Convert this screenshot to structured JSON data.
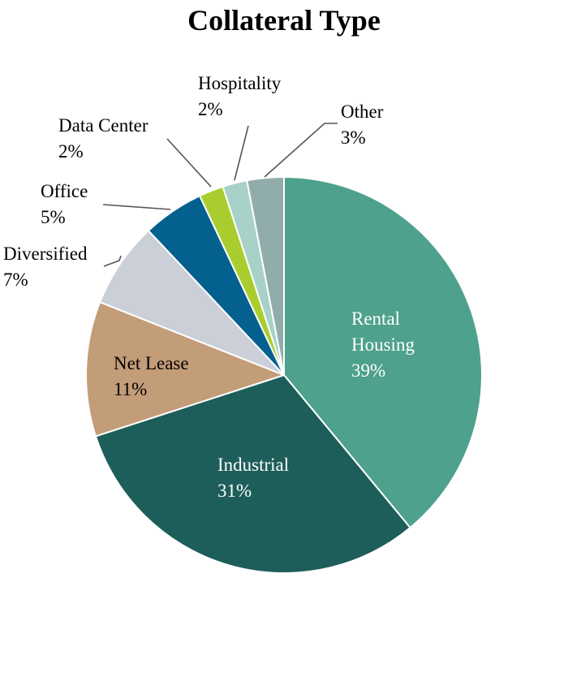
{
  "chart_data": {
    "type": "pie",
    "title": "Collateral Type",
    "slices": [
      {
        "label": "Rental Housing",
        "display_lines": [
          "Rental",
          "Housing"
        ],
        "value": 39,
        "value_label": "39%",
        "color": "#4ea18c",
        "label_color": "#ffffff",
        "label_position": "inside"
      },
      {
        "label": "Industrial",
        "display_lines": [
          "Industrial"
        ],
        "value": 31,
        "value_label": "31%",
        "color": "#1e5e5a",
        "label_color": "#ffffff",
        "label_position": "inside"
      },
      {
        "label": "Net Lease",
        "display_lines": [
          "Net Lease"
        ],
        "value": 11,
        "value_label": "11%",
        "color": "#c39c78",
        "label_color": "#000000",
        "label_position": "inside"
      },
      {
        "label": "Diversified",
        "display_lines": [
          "Diversified"
        ],
        "value": 7,
        "value_label": "7%",
        "color": "#cbcfd7",
        "label_color": "#000000",
        "label_position": "outside"
      },
      {
        "label": "Office",
        "display_lines": [
          "Office"
        ],
        "value": 5,
        "value_label": "5%",
        "color": "#03608f",
        "label_color": "#000000",
        "label_position": "outside"
      },
      {
        "label": "Data Center",
        "display_lines": [
          "Data Center"
        ],
        "value": 2,
        "value_label": "2%",
        "color": "#a9cd2f",
        "label_color": "#000000",
        "label_position": "outside"
      },
      {
        "label": "Hospitality",
        "display_lines": [
          "Hospitality"
        ],
        "value": 2,
        "value_label": "2%",
        "color": "#a8d2c8",
        "label_color": "#000000",
        "label_position": "outside"
      },
      {
        "label": "Other",
        "display_lines": [
          "Other"
        ],
        "value": 3,
        "value_label": "3%",
        "color": "#91adab",
        "label_color": "#000000",
        "label_position": "outside"
      }
    ],
    "start_angle": "12 o'clock",
    "direction": "clockwise",
    "legend": "none",
    "slice_border_color": "#ffffff"
  }
}
